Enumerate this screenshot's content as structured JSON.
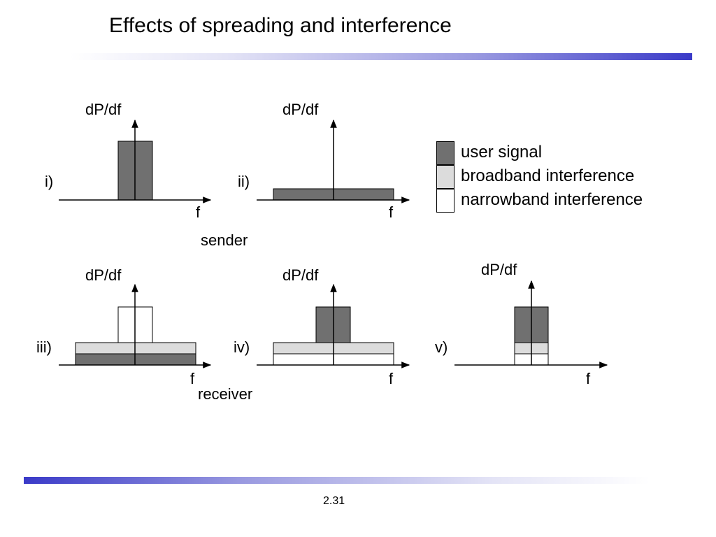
{
  "slide": {
    "title": "Effects of spreading and interference",
    "page_number": "2.31"
  },
  "colors": {
    "user_signal": "#707070",
    "broadband": "#dcdcdc",
    "narrowband": "#ffffff",
    "accent_bar": "#3a3ac8"
  },
  "diagrams": [
    {
      "id": "i",
      "label": "i)",
      "ylabel": "dP/df",
      "xlabel": "f"
    },
    {
      "id": "ii",
      "label": "ii)",
      "ylabel": "dP/df",
      "xlabel": "f"
    },
    {
      "id": "iii",
      "label": "iii)",
      "ylabel": "dP/df",
      "xlabel": "f"
    },
    {
      "id": "iv",
      "label": "iv)",
      "ylabel": "dP/df",
      "xlabel": "f"
    },
    {
      "id": "v",
      "label": "v)",
      "ylabel": "dP/df",
      "xlabel": "f"
    }
  ],
  "group_labels": {
    "sender": "sender",
    "receiver": "receiver"
  },
  "legend": [
    {
      "label": "user signal",
      "color_key": "user_signal"
    },
    {
      "label": "broadband interference",
      "color_key": "broadband"
    },
    {
      "label": "narrowband interference",
      "color_key": "narrowband"
    }
  ]
}
